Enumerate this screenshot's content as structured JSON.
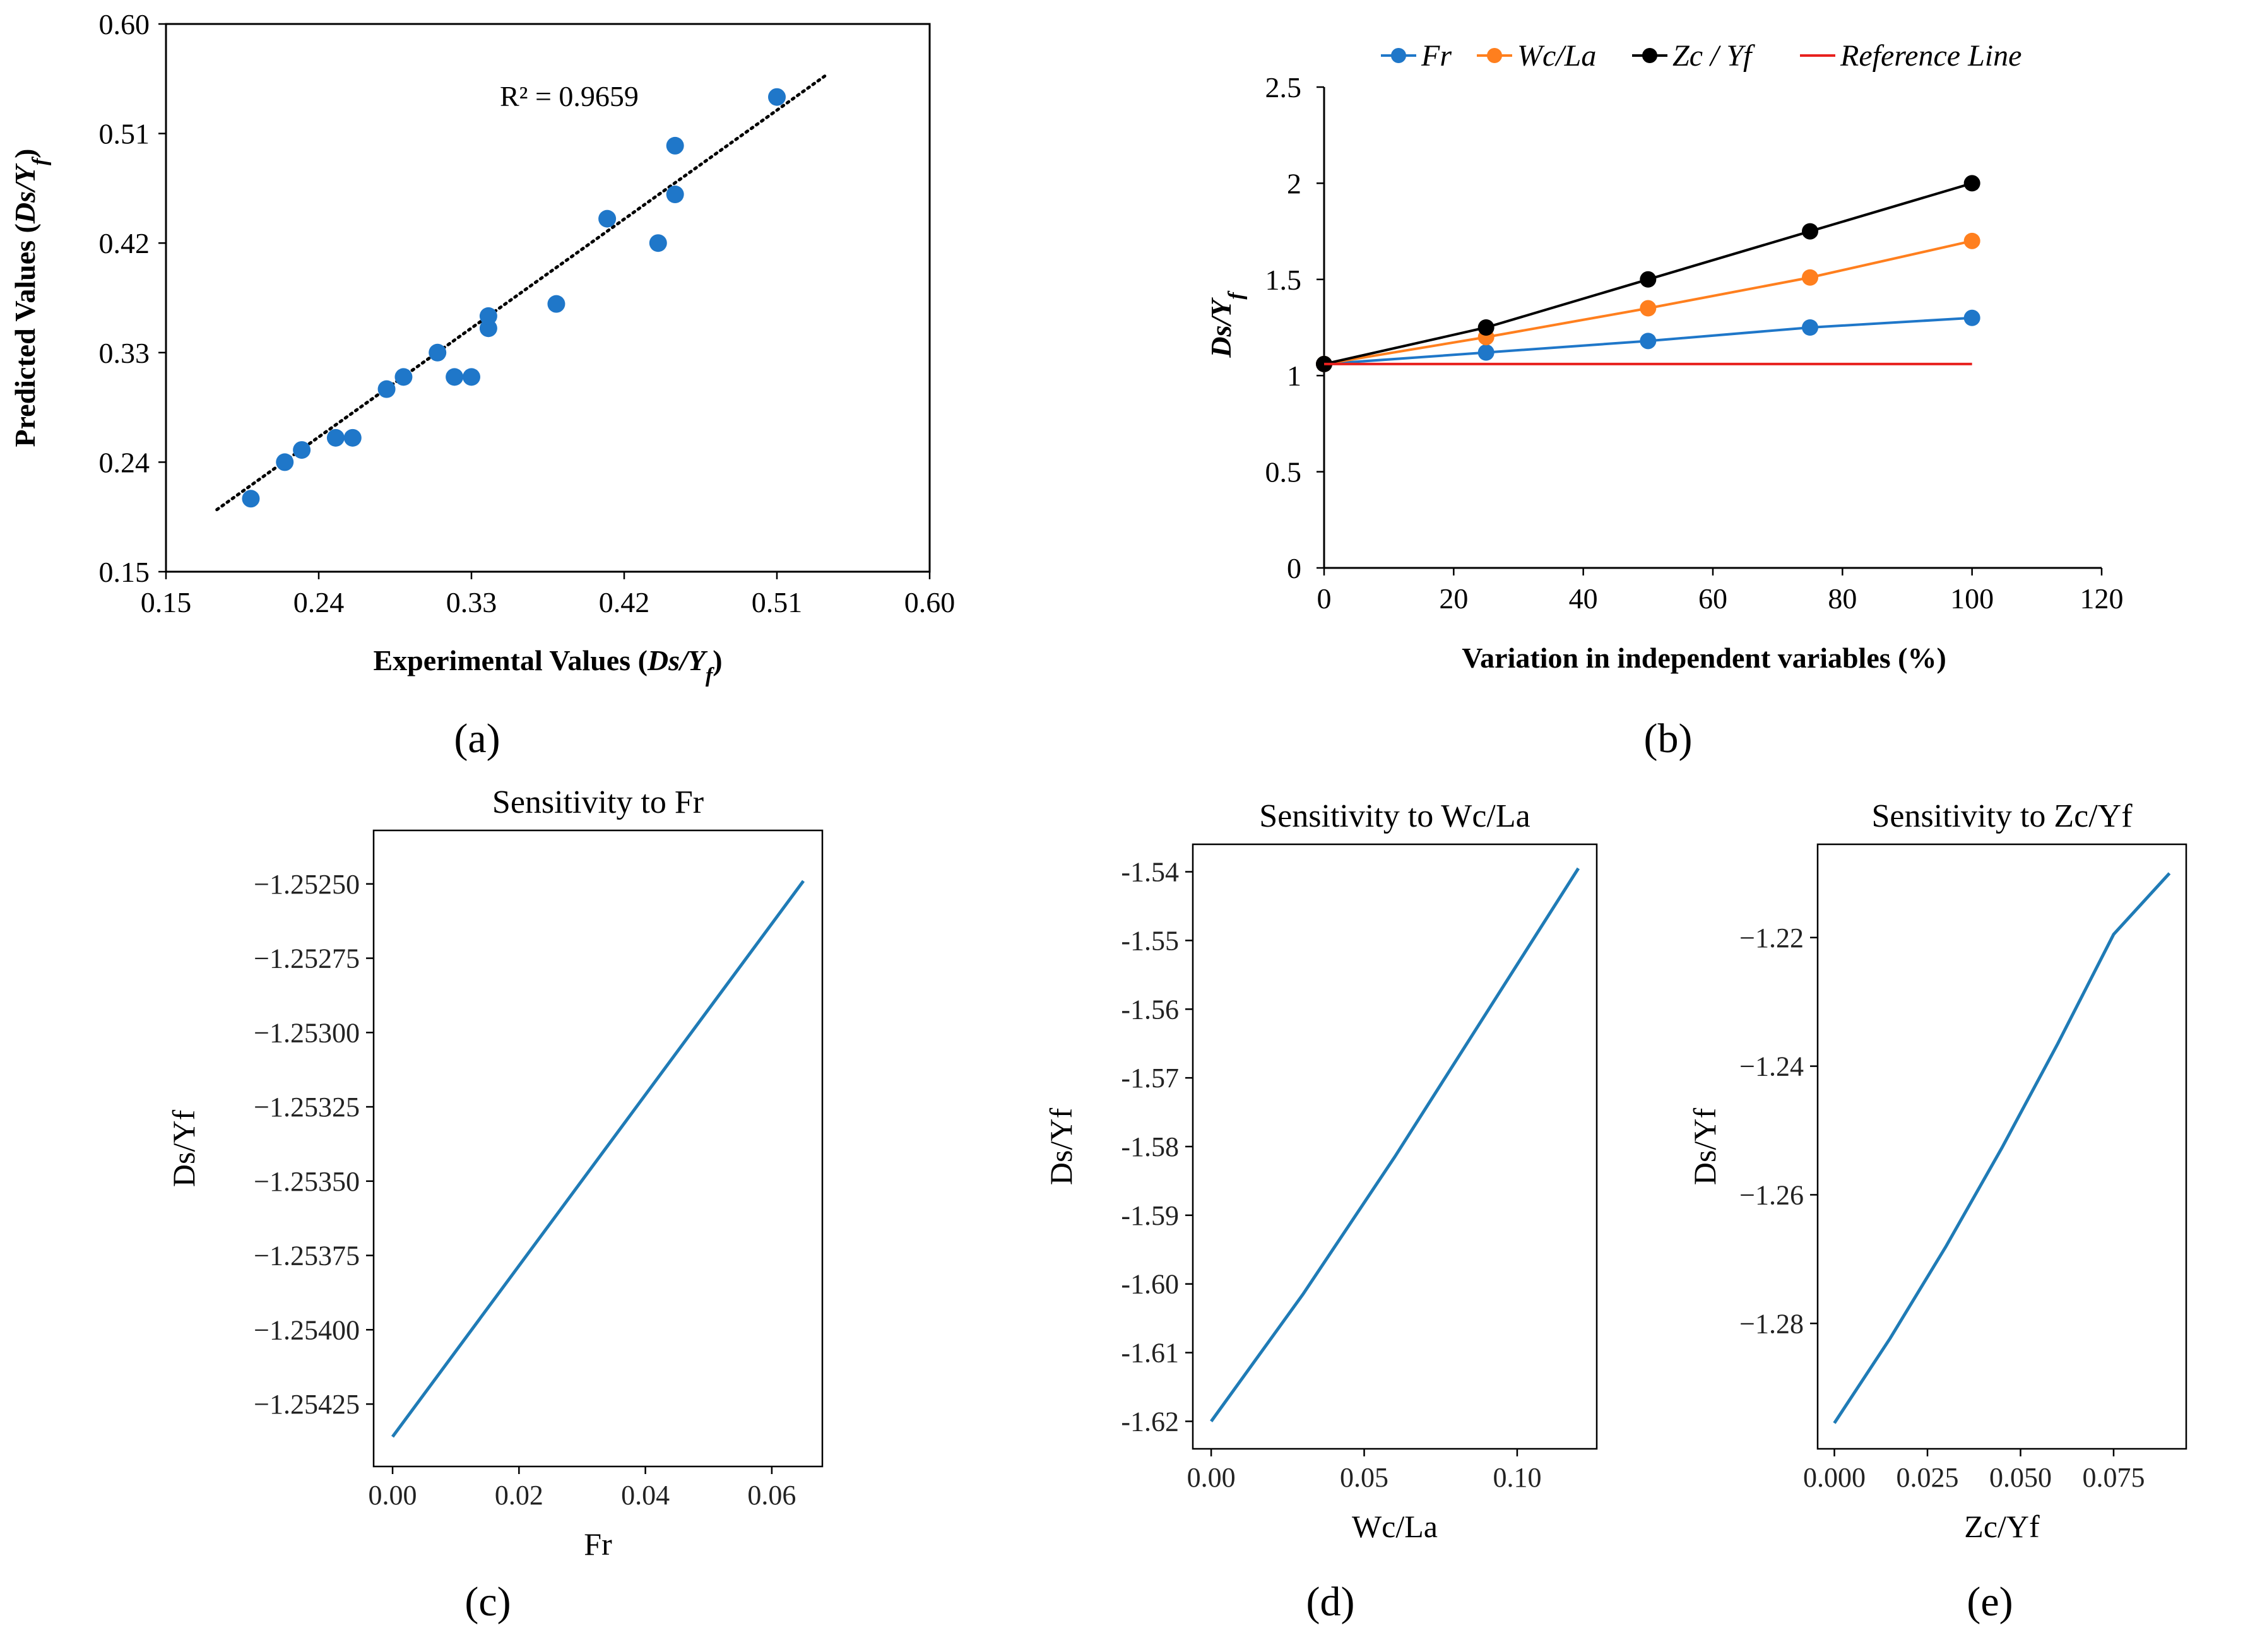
{
  "chart_data": [
    {
      "id": "a",
      "panel_label": "(a)",
      "type": "scatter",
      "xlabel": "Experimental Values (Ds/Yf)",
      "ylabel": "Predicted Values (Ds/Yf)",
      "xlim": [
        0.15,
        0.6
      ],
      "ylim": [
        0.15,
        0.6
      ],
      "ticks": [
        "0.15",
        "0.24",
        "0.33",
        "0.42",
        "0.51",
        "0.60"
      ],
      "annotation": "R² = 0.9659",
      "point_color": "#1f77c9",
      "points": [
        [
          0.2,
          0.21
        ],
        [
          0.22,
          0.24
        ],
        [
          0.23,
          0.25
        ],
        [
          0.25,
          0.26
        ],
        [
          0.26,
          0.26
        ],
        [
          0.28,
          0.3
        ],
        [
          0.29,
          0.31
        ],
        [
          0.31,
          0.33
        ],
        [
          0.32,
          0.31
        ],
        [
          0.33,
          0.31
        ],
        [
          0.34,
          0.35
        ],
        [
          0.34,
          0.36
        ],
        [
          0.38,
          0.37
        ],
        [
          0.41,
          0.44
        ],
        [
          0.44,
          0.42
        ],
        [
          0.45,
          0.46
        ],
        [
          0.45,
          0.5
        ],
        [
          0.51,
          0.54
        ]
      ],
      "trendline": [
        [
          0.18,
          0.201
        ],
        [
          0.54,
          0.559
        ]
      ]
    },
    {
      "id": "b",
      "panel_label": "(b)",
      "type": "line",
      "xlabel": "Variation in independent variables (%)",
      "ylabel": "Ds/Yf",
      "xlim": [
        0,
        120
      ],
      "ylim": [
        0,
        2.5
      ],
      "xticks": [
        "0",
        "20",
        "40",
        "60",
        "80",
        "100",
        "120"
      ],
      "yticks": [
        "0",
        "0.5",
        "1",
        "1.5",
        "2",
        "2.5"
      ],
      "x": [
        0,
        25,
        50,
        75,
        100
      ],
      "series": [
        {
          "name": "Fr",
          "color": "#1f77c9",
          "values": [
            1.06,
            1.12,
            1.18,
            1.25,
            1.3
          ]
        },
        {
          "name": "Wc/La",
          "color": "#ff7f1e",
          "values": [
            1.06,
            1.2,
            1.35,
            1.51,
            1.7
          ]
        },
        {
          "name": "Zc / Yf",
          "color": "#000000",
          "values": [
            1.06,
            1.25,
            1.5,
            1.75,
            2.0
          ]
        },
        {
          "name": "Reference Line",
          "color": "#e8211e",
          "values": [
            1.06,
            1.06,
            1.06,
            1.06,
            1.06
          ],
          "markers": false
        }
      ]
    },
    {
      "id": "c",
      "panel_label": "(c)",
      "type": "line",
      "title": "Sensitivity to Fr",
      "xlabel": "Fr",
      "ylabel": "Ds/Yf",
      "xlim": [
        -0.003,
        0.068
      ],
      "ylim": [
        -1.25446,
        -1.25232
      ],
      "xticks": [
        0.0,
        0.02,
        0.04,
        0.06
      ],
      "xtick_labels": [
        "0.00",
        "0.02",
        "0.04",
        "0.06"
      ],
      "yticks": [
        -1.25425,
        -1.254,
        -1.25375,
        -1.2535,
        -1.25325,
        -1.253,
        -1.25275,
        -1.2525
      ],
      "ytick_labels": [
        "−1.25425",
        "−1.25400",
        "−1.25375",
        "−1.25350",
        "−1.25325",
        "−1.25300",
        "−1.25275",
        "−1.25250"
      ],
      "x": [
        0.0,
        0.065
      ],
      "y": [
        -1.25436,
        -1.25249
      ],
      "line_color": "#1f7bb6"
    },
    {
      "id": "d",
      "panel_label": "(d)",
      "type": "line",
      "title": "Sensitivity to Wc/La",
      "xlabel": "Wc/La",
      "ylabel": "Ds/Yf",
      "xlim": [
        -0.006,
        0.126
      ],
      "ylim": [
        -1.624,
        -1.536
      ],
      "xticks": [
        0.0,
        0.05,
        0.1
      ],
      "xtick_labels": [
        "0.00",
        "0.05",
        "0.10"
      ],
      "yticks": [
        -1.62,
        -1.61,
        -1.6,
        -1.59,
        -1.58,
        -1.57,
        -1.56,
        -1.55,
        -1.54
      ],
      "ytick_labels": [
        "-1.62",
        "-1.61",
        "-1.60",
        "-1.59",
        "-1.58",
        "-1.57",
        "-1.56",
        "-1.55",
        "-1.54"
      ],
      "x": [
        0.0,
        0.03,
        0.06,
        0.09,
        0.12
      ],
      "y": [
        -1.62,
        -1.6015,
        -1.5815,
        -1.5605,
        -1.5395
      ],
      "line_color": "#1f7bb6"
    },
    {
      "id": "e",
      "panel_label": "(e)",
      "type": "line",
      "title": "Sensitivity to Zc/Yf",
      "xlabel": "Zc/Yf",
      "ylabel": "Ds/Yf",
      "xlim": [
        -0.0045,
        0.0945
      ],
      "ylim": [
        -1.2995,
        -1.2055
      ],
      "xticks": [
        0.0,
        0.025,
        0.05,
        0.075
      ],
      "xtick_labels": [
        "0.000",
        "0.025",
        "0.050",
        "0.075"
      ],
      "yticks": [
        -1.28,
        -1.26,
        -1.24,
        -1.22
      ],
      "ytick_labels": [
        "−1.28",
        "−1.26",
        "−1.24",
        "−1.22"
      ],
      "x": [
        0.0,
        0.015,
        0.03,
        0.045,
        0.06,
        0.075,
        0.09
      ],
      "y": [
        -1.2955,
        -1.2823,
        -1.268,
        -1.2527,
        -1.2365,
        -1.2195,
        -1.21
      ],
      "line_color": "#1f7bb6"
    }
  ]
}
